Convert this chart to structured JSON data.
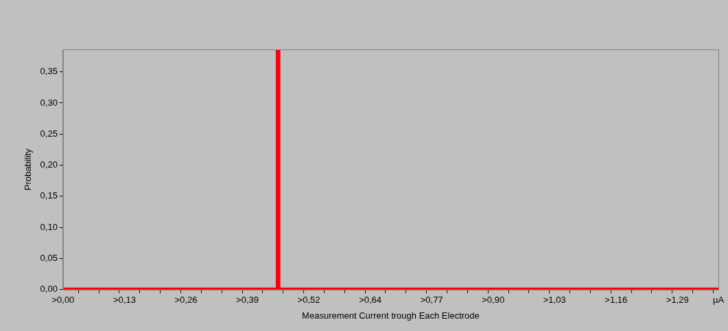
{
  "chart_data": {
    "type": "line",
    "xlabel": "Measurement Current trough Each Electrode",
    "ylabel": "Probability",
    "categories": [
      ">0,00",
      null,
      null,
      null,
      null,
      null,
      ">0,13",
      null,
      null,
      null,
      null,
      null,
      ">0,26",
      null,
      null,
      null,
      null,
      null,
      ">0,39",
      null,
      null,
      null,
      null,
      null,
      ">0,52",
      null,
      null,
      null,
      null,
      null,
      ">0,64",
      null,
      null,
      null,
      null,
      null,
      ">0,77",
      null,
      null,
      null,
      null,
      null,
      ">0,90",
      null,
      null,
      null,
      null,
      null,
      ">1,03",
      null,
      null,
      null,
      null,
      null,
      ">1,16",
      null,
      null,
      null,
      null,
      null,
      ">1,29",
      null,
      null,
      null,
      "µA"
    ],
    "series": [
      {
        "color": "#ff0000",
        "values": [
          0,
          0,
          0,
          0,
          0,
          0,
          0,
          0,
          0,
          0,
          0,
          0,
          0,
          0,
          0,
          0,
          0,
          0,
          0,
          0,
          0,
          null,
          0,
          0,
          0,
          0,
          0,
          0,
          0,
          0,
          0,
          0,
          0,
          0,
          0,
          0,
          0,
          0,
          0,
          0,
          0,
          0,
          0,
          0,
          0,
          0,
          0,
          0,
          0,
          0,
          0,
          0,
          0,
          0,
          0,
          0,
          0,
          0,
          0,
          0,
          0,
          0,
          0,
          0,
          0
        ]
      },
      {
        "type": "bar",
        "color": "#ff0000",
        "values": [
          null,
          null,
          null,
          null,
          null,
          null,
          null,
          null,
          null,
          null,
          null,
          null,
          null,
          null,
          null,
          null,
          null,
          null,
          null,
          null,
          null,
          0.386,
          null,
          null,
          null,
          null,
          null,
          null,
          null,
          null,
          null,
          null,
          null,
          null,
          null,
          null,
          null,
          null,
          null,
          null,
          null,
          null,
          null,
          null,
          null,
          null,
          null,
          null,
          null,
          null,
          null,
          null,
          null,
          null,
          null,
          null,
          null,
          null,
          null,
          null,
          null,
          null,
          null,
          null,
          null
        ]
      }
    ],
    "ylim": [
      0,
      0.386
    ],
    "yticks": [
      {
        "value": 0,
        "label": "0,00"
      },
      {
        "value": 0.05,
        "label": "0,05"
      },
      {
        "value": 0.1,
        "label": "0,10"
      },
      {
        "value": 0.15,
        "label": "0,15"
      },
      {
        "value": 0.2,
        "label": "0,20"
      },
      {
        "value": 0.25,
        "label": "0,25"
      },
      {
        "value": 0.3,
        "label": "0,30"
      },
      {
        "value": 0.35,
        "label": "0,35"
      }
    ],
    "grid": false,
    "legend": false,
    "marker": "none",
    "line_style": "solid"
  }
}
